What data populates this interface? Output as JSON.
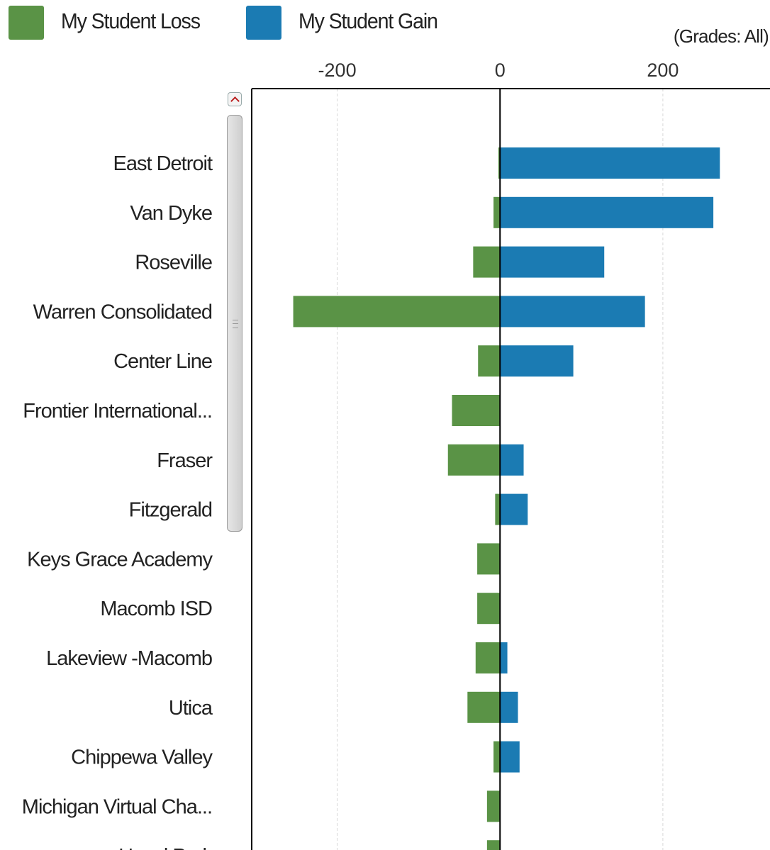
{
  "legend": [
    {
      "label": "My Student Loss",
      "color": "#5a9346"
    },
    {
      "label": "My Student Gain",
      "color": "#1b7bb3"
    }
  ],
  "grades_note": "(Grades: All)",
  "chart_data": {
    "type": "bar",
    "orientation": "horizontal",
    "stacked": "diverging",
    "xlim": [
      -305,
      322
    ],
    "x_ticks": [
      "-200",
      "0",
      "200"
    ],
    "x_tick_values": [
      -200,
      0,
      200
    ],
    "grid": true,
    "legend_position": "top-left",
    "categories": [
      "East Detroit",
      "Van Dyke",
      "Roseville",
      "Warren Consolidated",
      "Center Line",
      "Frontier International...",
      "Fraser",
      "Fitzgerald",
      "Keys Grace Academy",
      "Macomb ISD",
      "Lakeview -Macomb",
      "Utica",
      "Chippewa Valley",
      "Michigan Virtual Cha...",
      "Hazel Park"
    ],
    "series": [
      {
        "name": "My Student Loss",
        "color": "#5a9346",
        "values": [
          -2,
          -8,
          -33,
          -254,
          -27,
          -59,
          -64,
          -6,
          -28,
          -28,
          -30,
          -40,
          -8,
          -16,
          -16
        ]
      },
      {
        "name": "My Student Gain",
        "color": "#1b7bb3",
        "values": [
          270,
          262,
          128,
          178,
          90,
          0,
          29,
          34,
          0,
          0,
          9,
          22,
          24,
          0,
          0
        ]
      }
    ]
  }
}
